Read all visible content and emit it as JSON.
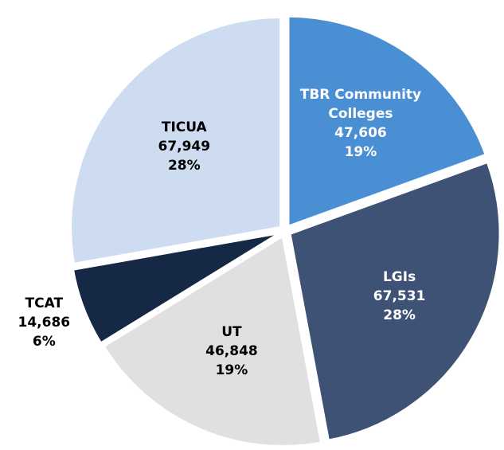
{
  "chart_data": {
    "type": "pie",
    "categories": [
      "TBR Community Colleges",
      "LGIs",
      "UT",
      "TCAT",
      "TICUA"
    ],
    "values": [
      47606,
      67531,
      46848,
      14686,
      67949
    ],
    "value_labels": [
      "47,606",
      "67,531",
      "46,848",
      "14,686",
      "67,949"
    ],
    "percent_values": [
      19,
      28,
      19,
      6,
      28
    ],
    "percent_labels": [
      "19%",
      "28%",
      "19%",
      "6%",
      "28%"
    ],
    "colors": [
      "#4a8fd4",
      "#3d5275",
      "#e0e0e0",
      "#152845",
      "#cddcf0"
    ]
  }
}
